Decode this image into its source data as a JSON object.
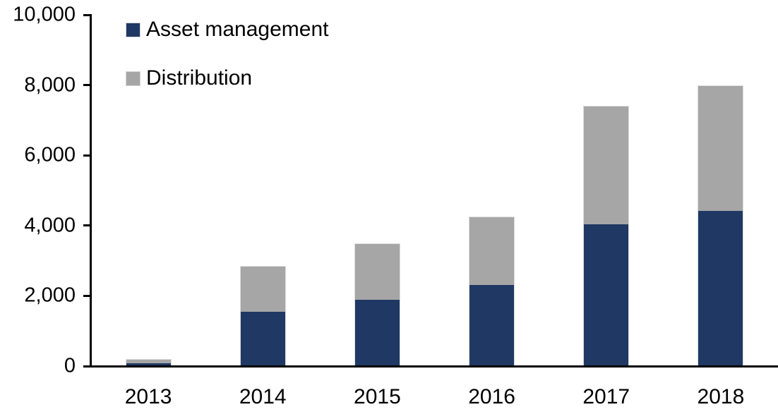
{
  "chart_data": {
    "type": "bar",
    "stacked": true,
    "title": "",
    "categories": [
      "2013",
      "2014",
      "2015",
      "2016",
      "2017",
      "2018"
    ],
    "series": [
      {
        "name": "Asset management",
        "color": "#1F3864",
        "values": [
          90,
          1550,
          1890,
          2300,
          4040,
          4420
        ]
      },
      {
        "name": "Distribution",
        "color": "#A6A6A6",
        "values": [
          110,
          1310,
          1610,
          1950,
          3360,
          3580
        ]
      }
    ],
    "totals": [
      200,
      2860,
      3500,
      4250,
      7400,
      8000
    ],
    "xlabel": "",
    "ylabel": "",
    "ylim": [
      0,
      10000
    ],
    "ytick_interval": 2000,
    "ytick_labels": [
      "0",
      "2,000",
      "4,000",
      "6,000",
      "8,000",
      "10,000"
    ],
    "grid": false,
    "legend_position": "top-left"
  },
  "colors": {
    "background": "#FFFFFF",
    "axis": "#000000",
    "text": "#000000",
    "bar_border": "#DCDCDC"
  }
}
